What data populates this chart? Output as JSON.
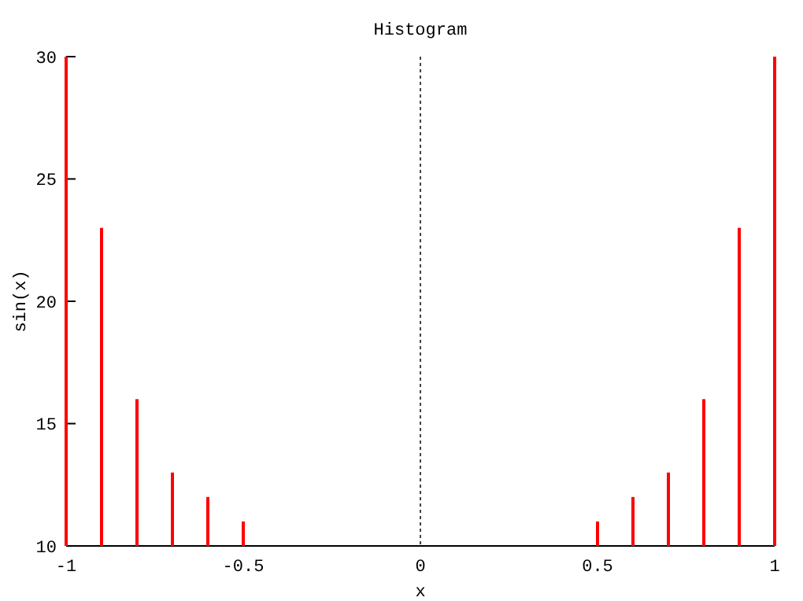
{
  "chart_data": {
    "type": "bar",
    "title": "Histogram",
    "xlabel": "x",
    "ylabel": "sin(x)",
    "x": [
      -1,
      -0.9,
      -0.8,
      -0.7,
      -0.6,
      -0.5,
      -0.4,
      -0.3,
      -0.2,
      -0.1,
      0,
      0.1,
      0.2,
      0.3,
      0.4,
      0.5,
      0.6,
      0.7,
      0.8,
      0.9,
      1
    ],
    "values": [
      30,
      23,
      16,
      13,
      12,
      11,
      10,
      10,
      10,
      10,
      10,
      10,
      10,
      10,
      10,
      11,
      12,
      13,
      16,
      23,
      30
    ],
    "color": "#ff0000",
    "xlim": [
      -1,
      1
    ],
    "xticks": [
      -1,
      -0.5,
      0,
      0.5,
      1
    ],
    "ylim": [
      10,
      30
    ],
    "yticks": [
      10,
      15,
      20,
      25,
      30
    ],
    "ref_lines": [
      {
        "axis": "x",
        "value": 0,
        "color": "#444444",
        "line_style": "dotted"
      }
    ],
    "grid": false
  }
}
